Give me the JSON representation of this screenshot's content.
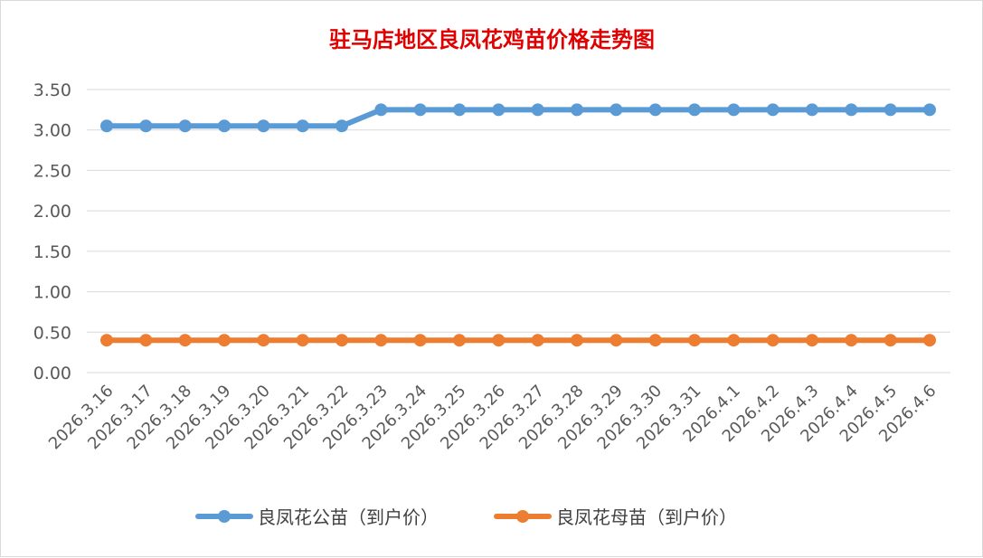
{
  "chart_data": {
    "type": "line",
    "title": "驻马店地区良凤花鸡苗价格走势图",
    "title_color": "#e00000",
    "xlabel": "",
    "ylabel": "",
    "ylim": [
      0,
      3.5
    ],
    "y_ticks": [
      "0.00",
      "0.50",
      "1.00",
      "1.50",
      "2.00",
      "2.50",
      "3.00",
      "3.50"
    ],
    "grid": "horizontal",
    "legend_position": "bottom",
    "categories": [
      "2026.3.16",
      "2026.3.17",
      "2026.3.18",
      "2026.3.19",
      "2026.3.20",
      "2026.3.21",
      "2026.3.22",
      "2026.3.23",
      "2026.3.24",
      "2026.3.25",
      "2026.3.26",
      "2026.3.27",
      "2026.3.28",
      "2026.3.29",
      "2026.3.30",
      "2026.3.31",
      "2026.4.1",
      "2026.4.2",
      "2026.4.3",
      "2026.4.4",
      "2026.4.5",
      "2026.4.6"
    ],
    "series": [
      {
        "name": "良凤花公苗（到户价）",
        "color": "#5b9bd5",
        "values": [
          3.05,
          3.05,
          3.05,
          3.05,
          3.05,
          3.05,
          3.05,
          3.25,
          3.25,
          3.25,
          3.25,
          3.25,
          3.25,
          3.25,
          3.25,
          3.25,
          3.25,
          3.25,
          3.25,
          3.25,
          3.25,
          3.25
        ]
      },
      {
        "name": "良凤花母苗（到户价）",
        "color": "#ed7d31",
        "values": [
          0.4,
          0.4,
          0.4,
          0.4,
          0.4,
          0.4,
          0.4,
          0.4,
          0.4,
          0.4,
          0.4,
          0.4,
          0.4,
          0.4,
          0.4,
          0.4,
          0.4,
          0.4,
          0.4,
          0.4,
          0.4,
          0.4
        ]
      }
    ]
  }
}
